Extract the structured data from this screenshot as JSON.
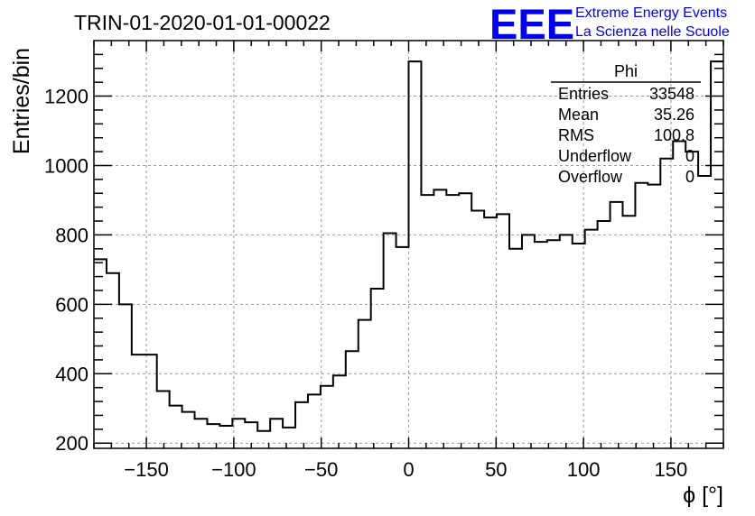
{
  "title": "TRIN-01-2020-01-01-00022",
  "logo": {
    "mark": "EEE",
    "line1": "Extreme Energy Events",
    "line2": "La Scienza nelle Scuole",
    "color": "#0000ee"
  },
  "stats": {
    "name": "Phi",
    "rows": [
      {
        "label": "Entries",
        "value": "33548"
      },
      {
        "label": "Mean",
        "value": "35.26"
      },
      {
        "label": "RMS",
        "value": "100.8"
      },
      {
        "label": "Underflow",
        "value": "0"
      },
      {
        "label": "Overflow",
        "value": "0"
      }
    ]
  },
  "chart_data": {
    "type": "bar",
    "style": "step-histogram",
    "xlabel": "ϕ [°]",
    "ylabel": "Entries/bin",
    "xlim": [
      -180,
      180
    ],
    "ylim": [
      185,
      1360
    ],
    "bin_width": 7.2,
    "xticks": [
      -150,
      -100,
      -50,
      0,
      50,
      100,
      150
    ],
    "xtick_labels": [
      "−150",
      "−100",
      "−50",
      "0",
      "50",
      "100",
      "150"
    ],
    "yticks": [
      200,
      400,
      600,
      800,
      1000,
      1200
    ],
    "ytick_labels": [
      "200",
      "400",
      "600",
      "800",
      "1000",
      "1200"
    ],
    "grid": true,
    "legend": "stats box, top-right",
    "values": [
      730,
      690,
      600,
      455,
      455,
      350,
      308,
      290,
      270,
      255,
      250,
      270,
      260,
      235,
      270,
      245,
      318,
      340,
      365,
      395,
      465,
      555,
      645,
      805,
      765,
      1300,
      915,
      930,
      915,
      920,
      870,
      850,
      860,
      760,
      800,
      780,
      785,
      800,
      775,
      815,
      840,
      895,
      855,
      950,
      945,
      1020,
      1070,
      1040,
      970,
      1300
    ]
  }
}
